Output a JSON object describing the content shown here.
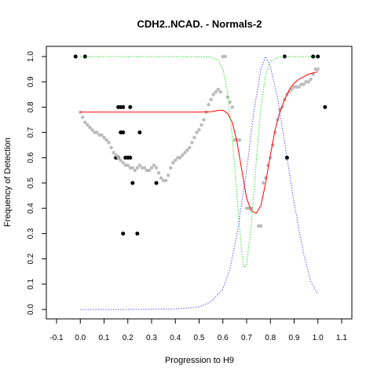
{
  "chart_data": {
    "type": "scatter",
    "title": "CDH2..NCAD. - Normals-2",
    "xlabel": "Progression to H9",
    "ylabel": "Frequency of Detection",
    "xlim": [
      -0.1,
      1.1
    ],
    "ylim": [
      0.0,
      1.0
    ],
    "x_ticks": [
      "-0.1",
      "0.0",
      "0.1",
      "0.2",
      "0.3",
      "0.4",
      "0.5",
      "0.6",
      "0.7",
      "0.8",
      "0.9",
      "1.0",
      "1.1"
    ],
    "y_ticks": [
      "0.0",
      "0.1",
      "0.2",
      "0.3",
      "0.4",
      "0.5",
      "0.6",
      "0.7",
      "0.8",
      "0.9",
      "1.0"
    ],
    "grid": false,
    "legend": "none",
    "series": [
      {
        "style": "points",
        "color": "#000000",
        "points": [
          [
            -0.02,
            1.0
          ],
          [
            0.02,
            1.0
          ],
          [
            0.86,
            1.0
          ],
          [
            0.98,
            1.0
          ],
          [
            1.0,
            1.0
          ],
          [
            0.16,
            0.8
          ],
          [
            0.17,
            0.8
          ],
          [
            0.18,
            0.8
          ],
          [
            0.21,
            0.8
          ],
          [
            0.17,
            0.7
          ],
          [
            0.18,
            0.7
          ],
          [
            0.25,
            0.7
          ],
          [
            0.15,
            0.6
          ],
          [
            0.16,
            0.6
          ],
          [
            0.19,
            0.6
          ],
          [
            0.2,
            0.6
          ],
          [
            0.21,
            0.6
          ],
          [
            0.87,
            0.6
          ],
          [
            0.22,
            0.5
          ],
          [
            0.32,
            0.5
          ],
          [
            1.03,
            0.8
          ],
          [
            0.18,
            0.3
          ],
          [
            0.24,
            0.3
          ]
        ]
      },
      {
        "style": "points",
        "color": "#bbbbbb",
        "points": [
          [
            0.0,
            0.78
          ],
          [
            0.01,
            0.76
          ],
          [
            0.02,
            0.74
          ],
          [
            0.03,
            0.73
          ],
          [
            0.04,
            0.72
          ],
          [
            0.05,
            0.71
          ],
          [
            0.06,
            0.7
          ],
          [
            0.07,
            0.7
          ],
          [
            0.08,
            0.69
          ],
          [
            0.09,
            0.69
          ],
          [
            0.1,
            0.68
          ],
          [
            0.11,
            0.67
          ],
          [
            0.12,
            0.66
          ],
          [
            0.13,
            0.64
          ],
          [
            0.14,
            0.62
          ],
          [
            0.15,
            0.61
          ],
          [
            0.16,
            0.6
          ],
          [
            0.17,
            0.59
          ],
          [
            0.18,
            0.58
          ],
          [
            0.19,
            0.57
          ],
          [
            0.2,
            0.57
          ],
          [
            0.21,
            0.56
          ],
          [
            0.22,
            0.56
          ],
          [
            0.23,
            0.55
          ],
          [
            0.24,
            0.56
          ],
          [
            0.25,
            0.57
          ],
          [
            0.26,
            0.56
          ],
          [
            0.27,
            0.56
          ],
          [
            0.28,
            0.55
          ],
          [
            0.29,
            0.55
          ],
          [
            0.3,
            0.56
          ],
          [
            0.31,
            0.57
          ],
          [
            0.32,
            0.56
          ],
          [
            0.33,
            0.54
          ],
          [
            0.34,
            0.52
          ],
          [
            0.35,
            0.51
          ],
          [
            0.36,
            0.51
          ],
          [
            0.37,
            0.53
          ],
          [
            0.38,
            0.56
          ],
          [
            0.39,
            0.58
          ],
          [
            0.4,
            0.59
          ],
          [
            0.41,
            0.6
          ],
          [
            0.42,
            0.6
          ],
          [
            0.43,
            0.61
          ],
          [
            0.44,
            0.62
          ],
          [
            0.45,
            0.63
          ],
          [
            0.46,
            0.64
          ],
          [
            0.47,
            0.66
          ],
          [
            0.48,
            0.68
          ],
          [
            0.49,
            0.7
          ],
          [
            0.5,
            0.71
          ],
          [
            0.51,
            0.73
          ],
          [
            0.52,
            0.75
          ],
          [
            0.53,
            0.78
          ],
          [
            0.54,
            0.81
          ],
          [
            0.55,
            0.83
          ],
          [
            0.56,
            0.85
          ],
          [
            0.57,
            0.86
          ],
          [
            0.58,
            0.87
          ],
          [
            0.59,
            0.86
          ],
          [
            0.6,
            1.0
          ],
          [
            0.61,
            1.0
          ],
          [
            0.62,
            0.84
          ],
          [
            0.63,
            0.82
          ],
          [
            0.64,
            0.8
          ],
          [
            0.65,
            0.67
          ],
          [
            0.66,
            0.67
          ],
          [
            0.67,
            0.67
          ],
          [
            0.7,
            0.4
          ],
          [
            0.71,
            0.4
          ],
          [
            0.72,
            0.4
          ],
          [
            0.75,
            0.33
          ],
          [
            0.76,
            0.33
          ],
          [
            0.77,
            0.5
          ],
          [
            0.78,
            0.52
          ],
          [
            0.79,
            0.57
          ],
          [
            0.8,
            0.6
          ],
          [
            0.81,
            0.65
          ],
          [
            0.82,
            0.7
          ],
          [
            0.83,
            0.75
          ],
          [
            0.84,
            0.79
          ],
          [
            0.85,
            0.8
          ],
          [
            0.86,
            0.83
          ],
          [
            0.87,
            0.85
          ],
          [
            0.88,
            0.86
          ],
          [
            0.89,
            0.87
          ],
          [
            0.9,
            0.88
          ],
          [
            0.91,
            0.88
          ],
          [
            0.92,
            0.88
          ],
          [
            0.93,
            0.89
          ],
          [
            0.94,
            0.89
          ],
          [
            0.95,
            0.9
          ],
          [
            0.96,
            0.9
          ],
          [
            0.97,
            0.91
          ],
          [
            0.98,
            0.93
          ],
          [
            0.99,
            0.95
          ],
          [
            1.0,
            0.95
          ]
        ]
      },
      {
        "style": "line",
        "color": "#ff0000",
        "points": [
          [
            0.0,
            0.78
          ],
          [
            0.1,
            0.78
          ],
          [
            0.2,
            0.78
          ],
          [
            0.3,
            0.78
          ],
          [
            0.4,
            0.78
          ],
          [
            0.5,
            0.78
          ],
          [
            0.55,
            0.782
          ],
          [
            0.58,
            0.787
          ],
          [
            0.6,
            0.788
          ],
          [
            0.62,
            0.775
          ],
          [
            0.64,
            0.74
          ],
          [
            0.66,
            0.66
          ],
          [
            0.68,
            0.55
          ],
          [
            0.7,
            0.44
          ],
          [
            0.72,
            0.39
          ],
          [
            0.74,
            0.38
          ],
          [
            0.76,
            0.41
          ],
          [
            0.78,
            0.5
          ],
          [
            0.8,
            0.61
          ],
          [
            0.82,
            0.71
          ],
          [
            0.84,
            0.78
          ],
          [
            0.86,
            0.83
          ],
          [
            0.88,
            0.87
          ],
          [
            0.9,
            0.895
          ],
          [
            0.92,
            0.91
          ],
          [
            0.94,
            0.92
          ],
          [
            0.96,
            0.93
          ],
          [
            0.98,
            0.935
          ],
          [
            1.0,
            0.94
          ]
        ]
      },
      {
        "style": "dotted",
        "color": "#00dd00",
        "points": [
          [
            0.0,
            1.0
          ],
          [
            0.2,
            1.0
          ],
          [
            0.4,
            1.0
          ],
          [
            0.55,
            0.998
          ],
          [
            0.58,
            0.985
          ],
          [
            0.6,
            0.95
          ],
          [
            0.62,
            0.86
          ],
          [
            0.64,
            0.68
          ],
          [
            0.66,
            0.44
          ],
          [
            0.68,
            0.22
          ],
          [
            0.69,
            0.165
          ],
          [
            0.7,
            0.18
          ],
          [
            0.72,
            0.33
          ],
          [
            0.74,
            0.58
          ],
          [
            0.76,
            0.8
          ],
          [
            0.78,
            0.93
          ],
          [
            0.8,
            0.98
          ],
          [
            0.83,
            0.996
          ],
          [
            0.86,
            1.0
          ],
          [
            1.0,
            1.0
          ]
        ]
      },
      {
        "style": "dotted",
        "color": "#3333ff",
        "points": [
          [
            0.0,
            0.0
          ],
          [
            0.2,
            0.0
          ],
          [
            0.4,
            0.002
          ],
          [
            0.5,
            0.01
          ],
          [
            0.55,
            0.03
          ],
          [
            0.6,
            0.08
          ],
          [
            0.63,
            0.16
          ],
          [
            0.66,
            0.3
          ],
          [
            0.7,
            0.55
          ],
          [
            0.73,
            0.78
          ],
          [
            0.76,
            0.95
          ],
          [
            0.78,
            1.0
          ],
          [
            0.8,
            0.96
          ],
          [
            0.83,
            0.84
          ],
          [
            0.86,
            0.66
          ],
          [
            0.9,
            0.42
          ],
          [
            0.94,
            0.22
          ],
          [
            0.97,
            0.11
          ],
          [
            1.0,
            0.06
          ]
        ]
      }
    ]
  }
}
